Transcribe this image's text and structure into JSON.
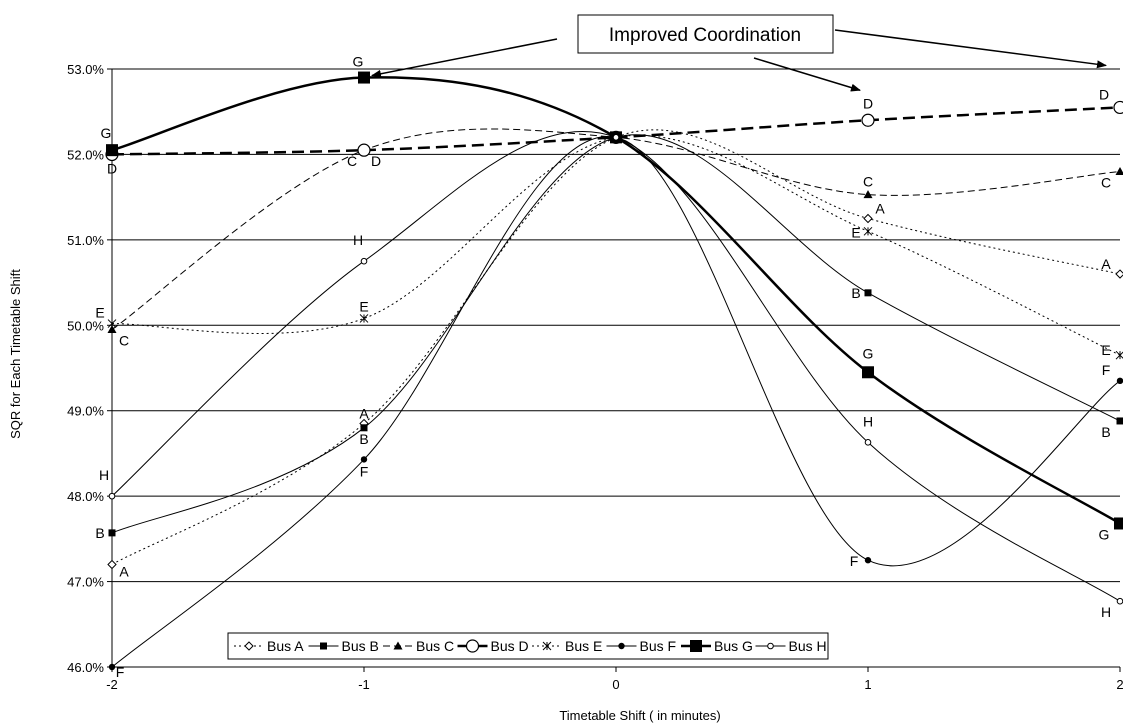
{
  "chart_data": {
    "type": "line",
    "xlabel": "Timetable Shift ( in minutes)",
    "ylabel": "SQR for Each Timetable Shift",
    "x": [
      -2,
      -1,
      0,
      1,
      2
    ],
    "xticks": [
      "-2",
      "-1",
      "0",
      "1",
      "2"
    ],
    "ylim": [
      46.0,
      53.0
    ],
    "yticks": [
      "46.0%",
      "47.0%",
      "48.0%",
      "49.0%",
      "50.0%",
      "51.0%",
      "52.0%",
      "53.0%"
    ],
    "grid": "horizontal",
    "legend_position": "bottom-center",
    "annotation": "Improved Coordination",
    "series": [
      {
        "name": "Bus A",
        "label": "A",
        "values": [
          47.2,
          48.85,
          52.2,
          51.25,
          50.6
        ],
        "dash": "dotted",
        "marker": "diamond-open",
        "width": 1
      },
      {
        "name": "Bus B",
        "label": "B",
        "values": [
          47.57,
          48.8,
          52.2,
          50.38,
          48.88
        ],
        "dash": "solid",
        "marker": "square-filled",
        "width": 1
      },
      {
        "name": "Bus C",
        "label": "C",
        "values": [
          49.95,
          52.05,
          52.2,
          51.53,
          51.8
        ],
        "dash": "dashed",
        "marker": "triangle-filled",
        "width": 1
      },
      {
        "name": "Bus D",
        "label": "D",
        "values": [
          52.0,
          52.05,
          52.2,
          52.4,
          52.55
        ],
        "dash": "longdash",
        "marker": "circle-open",
        "width": 2.5
      },
      {
        "name": "Bus E",
        "label": "E",
        "values": [
          50.02,
          50.08,
          52.2,
          51.1,
          49.65
        ],
        "dash": "dotted",
        "marker": "star",
        "width": 1
      },
      {
        "name": "Bus F",
        "label": "F",
        "values": [
          46.0,
          48.43,
          52.2,
          47.25,
          49.35
        ],
        "dash": "solid",
        "marker": "circle-filled",
        "width": 1
      },
      {
        "name": "Bus G",
        "label": "G",
        "values": [
          52.05,
          52.9,
          52.2,
          49.45,
          47.68
        ],
        "dash": "solid",
        "marker": "square-big",
        "width": 2.5
      },
      {
        "name": "Bus H",
        "label": "H",
        "values": [
          48.0,
          50.75,
          52.2,
          48.63,
          46.77
        ],
        "dash": "solid",
        "marker": "circle-small",
        "width": 1
      }
    ]
  }
}
